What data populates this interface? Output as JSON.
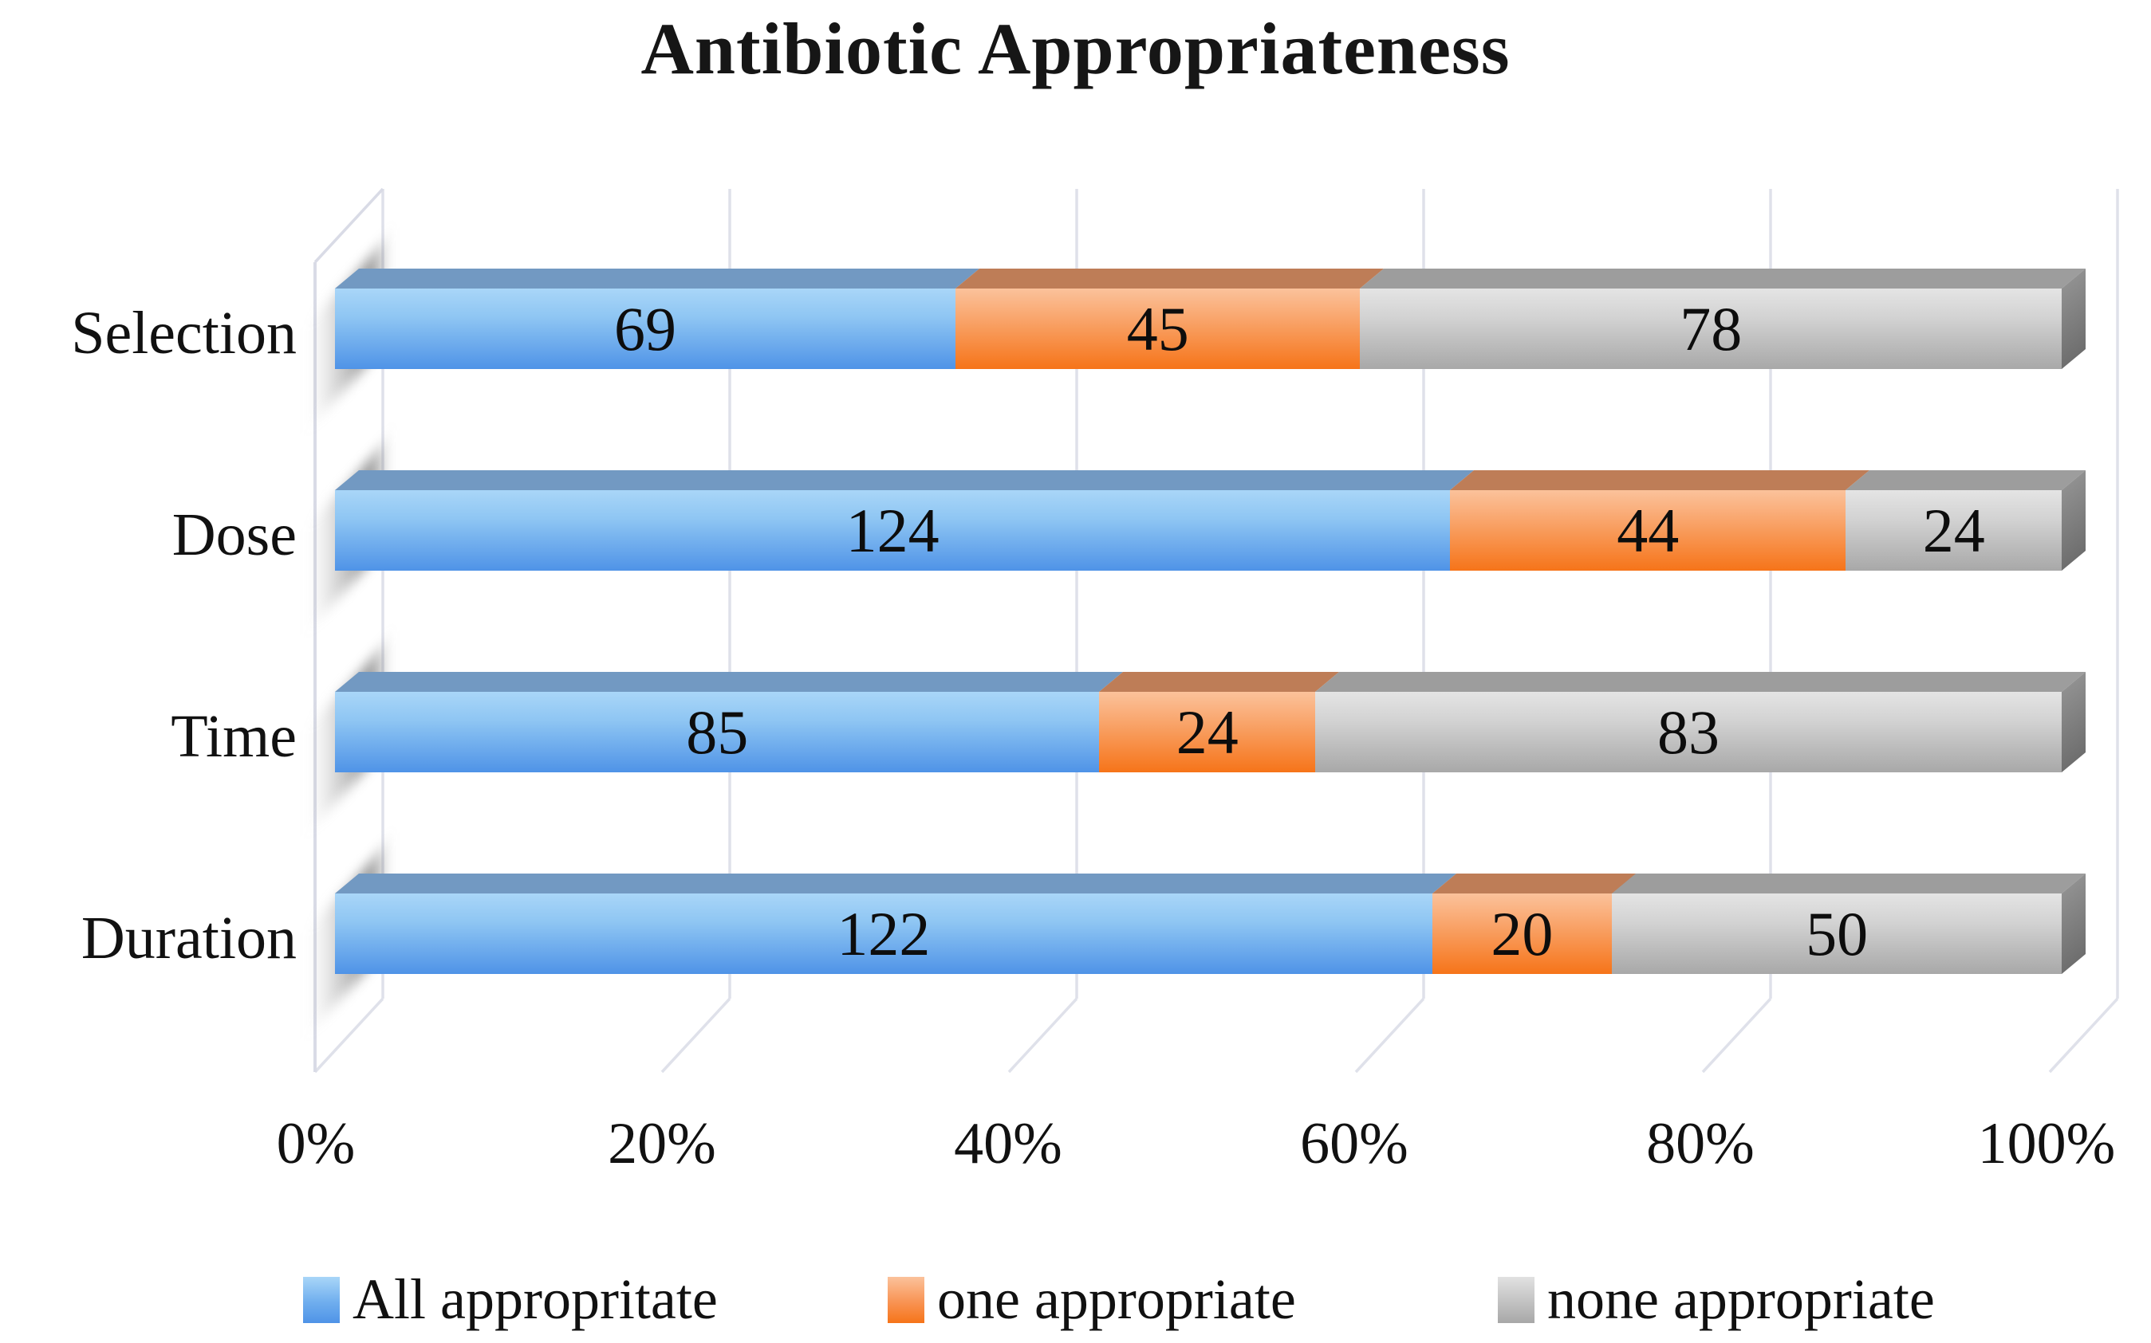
{
  "chart_data": {
    "type": "bar",
    "subtype": "stacked-horizontal-100pct-3d",
    "title": "Antibiotic Appropriateness",
    "categories": [
      "Selection",
      "Dose",
      "Time",
      "Duration"
    ],
    "series": [
      {
        "name": "All appropritate",
        "color": "#5B9BD5",
        "values": [
          69,
          124,
          85,
          122
        ]
      },
      {
        "name": "one appropriate",
        "color": "#ED7D31",
        "values": [
          45,
          44,
          24,
          20
        ]
      },
      {
        "name": "none appropriate",
        "color": "#A5A5A5",
        "values": [
          78,
          24,
          83,
          50
        ]
      }
    ],
    "x_tick_labels": [
      "0%",
      "20%",
      "40%",
      "60%",
      "80%",
      "100%"
    ],
    "xlim": [
      0,
      100
    ],
    "x_axis_unit": "percent",
    "value_labels_shown": true,
    "gridlines": "vertical",
    "legend_position": "bottom",
    "gridline_color": "#DFE1EA",
    "wall_line_color": "#D9DBE6"
  }
}
